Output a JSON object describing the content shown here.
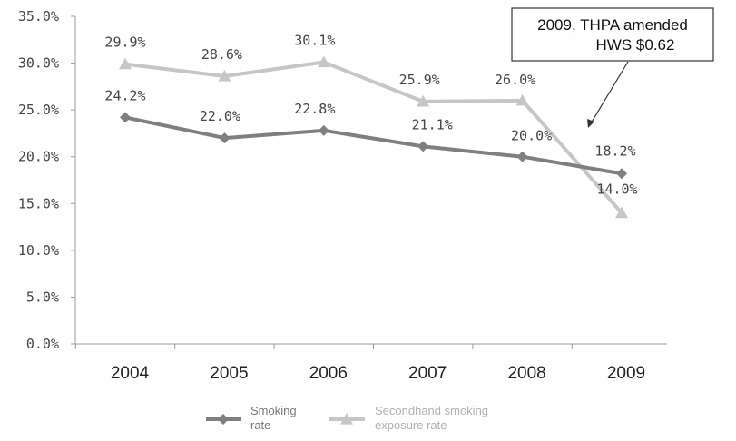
{
  "chart_data": {
    "type": "line",
    "categories": [
      "2004",
      "2005",
      "2006",
      "2007",
      "2008",
      "2009"
    ],
    "ylim": [
      0,
      35
    ],
    "yticks": [
      "0.0%",
      "5.0%",
      "10.0%",
      "15.0%",
      "20.0%",
      "25.0%",
      "30.0%",
      "35.0%"
    ],
    "grid": false,
    "legend_position": "bottom",
    "series": [
      {
        "name": "Smoking rate",
        "legend_lines": [
          "Smoking",
          "rate"
        ],
        "color": "#7f7f7f",
        "marker": "diamond",
        "values": [
          24.2,
          22.0,
          22.8,
          21.1,
          20.0,
          18.2
        ],
        "labels": [
          "24.2%",
          "22.0%",
          "22.8%",
          "21.1%",
          "20.0%",
          "18.2%"
        ]
      },
      {
        "name": "Secondhand smoking exposure rate",
        "legend_lines": [
          "Secondhand smoking",
          "exposure rate"
        ],
        "color": "#c6c6c6",
        "marker": "triangle",
        "values": [
          29.9,
          28.6,
          30.1,
          25.9,
          26.0,
          14.0
        ],
        "labels": [
          "29.9%",
          "28.6%",
          "30.1%",
          "25.9%",
          "26.0%",
          "14.0%"
        ]
      }
    ],
    "annotation": {
      "lines": [
        "2009, THPA amended",
        "HWS $0.62"
      ],
      "points_to_category": "2009"
    }
  }
}
